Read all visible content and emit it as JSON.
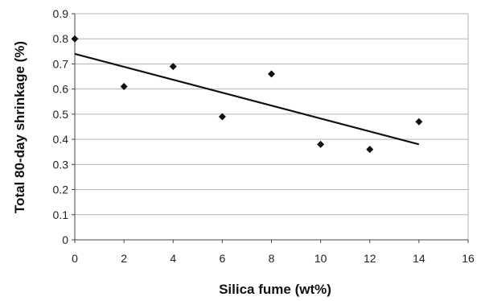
{
  "chart_data": {
    "type": "scatter",
    "xlabel": "Silica fume (wt%)",
    "ylabel": "Total 80-day shrinkage (%)",
    "xlim": [
      0,
      16
    ],
    "ylim": [
      0,
      0.9
    ],
    "x_ticks": [
      "0",
      "2",
      "4",
      "6",
      "8",
      "10",
      "12",
      "14",
      "16"
    ],
    "y_ticks": [
      "0",
      "0.1",
      "0.2",
      "0.3",
      "0.4",
      "0.5",
      "0.6",
      "0.7",
      "0.8",
      "0.9"
    ],
    "grid": "horizontal",
    "series": [
      {
        "marker": "diamond",
        "x": [
          0,
          2,
          4,
          6,
          8,
          10,
          12,
          14
        ],
        "y": [
          0.8,
          0.61,
          0.69,
          0.49,
          0.66,
          0.38,
          0.36,
          0.47
        ]
      }
    ],
    "trendline": {
      "type": "linear",
      "x": [
        0,
        14
      ],
      "y": [
        0.74,
        0.38
      ]
    },
    "colors": {
      "marker": "#111111",
      "trendline": "#111111",
      "grid": "#b5b5b5",
      "axis": "#444444"
    }
  }
}
